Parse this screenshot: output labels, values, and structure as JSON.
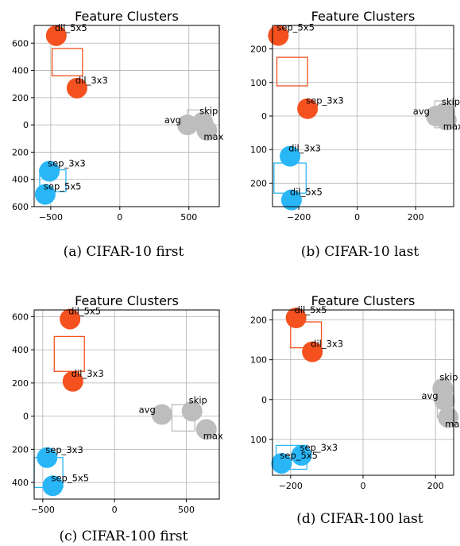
{
  "colors": {
    "orange": "#F4511E",
    "blue": "#29B6F6",
    "gray": "#BDBDBD"
  },
  "chart_data": [
    {
      "type": "scatter",
      "title": "Feature Clusters",
      "caption": "(a) CIFAR-10 first",
      "y_inverted_ticks": true,
      "grid": true,
      "xlim": [
        -620,
        720
      ],
      "ylim": [
        -600,
        730
      ],
      "xticks": [
        -500,
        0,
        500
      ],
      "xtick_labels": [
        "−500",
        "0",
        "500"
      ],
      "yticks": [
        600,
        400,
        200,
        0,
        -200,
        -400,
        -600
      ],
      "ytick_labels": [
        "600",
        "400",
        "200",
        "0",
        "200",
        "400",
        "600"
      ],
      "points": [
        {
          "label": "dil_5x5",
          "x": -460,
          "y": 655,
          "group": "orange"
        },
        {
          "label": "dil_3x3",
          "x": -310,
          "y": 270,
          "group": "orange"
        },
        {
          "label": "skip",
          "x": 600,
          "y": 20,
          "group": "gray"
        },
        {
          "label": "avg",
          "x": 490,
          "y": 0,
          "group": "gray"
        },
        {
          "label": "max",
          "x": 630,
          "y": -40,
          "group": "gray"
        },
        {
          "label": "sep_3x3",
          "x": -510,
          "y": -340,
          "group": "blue"
        },
        {
          "label": "sep_5x5",
          "x": -540,
          "y": -510,
          "group": "blue"
        }
      ],
      "boxes": [
        {
          "group": "orange",
          "x0": -490,
          "x1": -270,
          "y0": 360,
          "y1": 560
        },
        {
          "group": "gray",
          "x0": 490,
          "x1": 660,
          "y0": -40,
          "y1": 110
        },
        {
          "group": "blue",
          "x0": -580,
          "x1": -390,
          "y0": -490,
          "y1": -330
        }
      ]
    },
    {
      "type": "scatter",
      "title": "Feature Clusters",
      "caption": "(b) CIFAR-10 last",
      "y_inverted_ticks": true,
      "grid": true,
      "xlim": [
        -290,
        330
      ],
      "ylim": [
        -270,
        270
      ],
      "xticks": [
        -200,
        0,
        200
      ],
      "xtick_labels": [
        "−200",
        "0",
        "200"
      ],
      "yticks": [
        200,
        100,
        0,
        -100,
        -200
      ],
      "ytick_labels": [
        "200",
        "100",
        "0",
        "100",
        "200"
      ],
      "points": [
        {
          "label": "sep_5x5",
          "x": -270,
          "y": 240,
          "group": "orange"
        },
        {
          "label": "sep_3x3",
          "x": -170,
          "y": 22,
          "group": "orange"
        },
        {
          "label": "skip",
          "x": 300,
          "y": 10,
          "group": "gray"
        },
        {
          "label": "avg",
          "x": 270,
          "y": 0,
          "group": "gray"
        },
        {
          "label": "max",
          "x": 305,
          "y": -12,
          "group": "gray"
        },
        {
          "label": "dil_3x3",
          "x": -230,
          "y": -120,
          "group": "blue"
        },
        {
          "label": "dil_5x5",
          "x": -225,
          "y": -250,
          "group": "blue"
        }
      ],
      "boxes": [
        {
          "group": "orange",
          "x0": -275,
          "x1": -170,
          "y0": 90,
          "y1": 175
        },
        {
          "group": "gray",
          "x0": 265,
          "x1": 325,
          "y0": -35,
          "y1": 45
        },
        {
          "group": "blue",
          "x0": -285,
          "x1": -175,
          "y0": -230,
          "y1": -140
        }
      ]
    },
    {
      "type": "scatter",
      "title": "Feature Clusters",
      "caption": "(c) CIFAR-100 first",
      "y_inverted_ticks": true,
      "grid": true,
      "xlim": [
        -560,
        730
      ],
      "ylim": [
        -500,
        640
      ],
      "xticks": [
        -500,
        0,
        500
      ],
      "xtick_labels": [
        "−500",
        "0",
        "500"
      ],
      "yticks": [
        600,
        400,
        200,
        0,
        -200,
        -400
      ],
      "ytick_labels": [
        "600",
        "400",
        "200",
        "0",
        "200",
        "400"
      ],
      "points": [
        {
          "label": "dil_5x5",
          "x": -310,
          "y": 585,
          "group": "orange"
        },
        {
          "label": "dil_3x3",
          "x": -290,
          "y": 210,
          "group": "orange"
        },
        {
          "label": "avg",
          "x": 330,
          "y": 10,
          "group": "gray"
        },
        {
          "label": "skip",
          "x": 540,
          "y": 30,
          "group": "gray"
        },
        {
          "label": "max",
          "x": 640,
          "y": -80,
          "group": "gray"
        },
        {
          "label": "sep_3x3",
          "x": -470,
          "y": -250,
          "group": "blue"
        },
        {
          "label": "sep_5x5",
          "x": -430,
          "y": -420,
          "group": "blue"
        }
      ],
      "boxes": [
        {
          "group": "orange",
          "x0": -420,
          "x1": -210,
          "y0": 270,
          "y1": 480
        },
        {
          "group": "gray",
          "x0": 400,
          "x1": 560,
          "y0": -90,
          "y1": 70
        },
        {
          "group": "blue",
          "x0": -560,
          "x1": -360,
          "y0": -430,
          "y1": -250
        }
      ]
    },
    {
      "type": "scatter",
      "title": "Feature Clusters",
      "caption": "(d) CIFAR-100 last",
      "y_inverted_ticks": true,
      "grid": true,
      "xlim": [
        -250,
        250
      ],
      "ylim": [
        -190,
        225
      ],
      "xticks": [
        -200,
        0,
        200
      ],
      "xtick_labels": [
        "−200",
        "0",
        "200"
      ],
      "yticks": [
        200,
        100,
        0,
        -100
      ],
      "ytick_labels": [
        "200",
        "100",
        "0",
        "100"
      ],
      "points": [
        {
          "label": "dil_5x5",
          "x": -185,
          "y": 205,
          "group": "orange"
        },
        {
          "label": "dil_3x3",
          "x": -140,
          "y": 120,
          "group": "orange"
        },
        {
          "label": "skip",
          "x": 220,
          "y": 28,
          "group": "gray"
        },
        {
          "label": "avg",
          "x": 225,
          "y": -2,
          "group": "gray"
        },
        {
          "label": "max",
          "x": 235,
          "y": -45,
          "group": "gray"
        },
        {
          "label": "sep_3x3",
          "x": -170,
          "y": -140,
          "group": "blue"
        },
        {
          "label": "sep_5x5",
          "x": -225,
          "y": -160,
          "group": "blue"
        }
      ],
      "boxes": [
        {
          "group": "orange",
          "x0": -200,
          "x1": -115,
          "y0": 130,
          "y1": 195
        },
        {
          "group": "gray",
          "x0": 205,
          "x1": 250,
          "y0": -45,
          "y1": 20
        },
        {
          "group": "blue",
          "x0": -240,
          "x1": -155,
          "y0": -175,
          "y1": -115
        }
      ]
    }
  ]
}
